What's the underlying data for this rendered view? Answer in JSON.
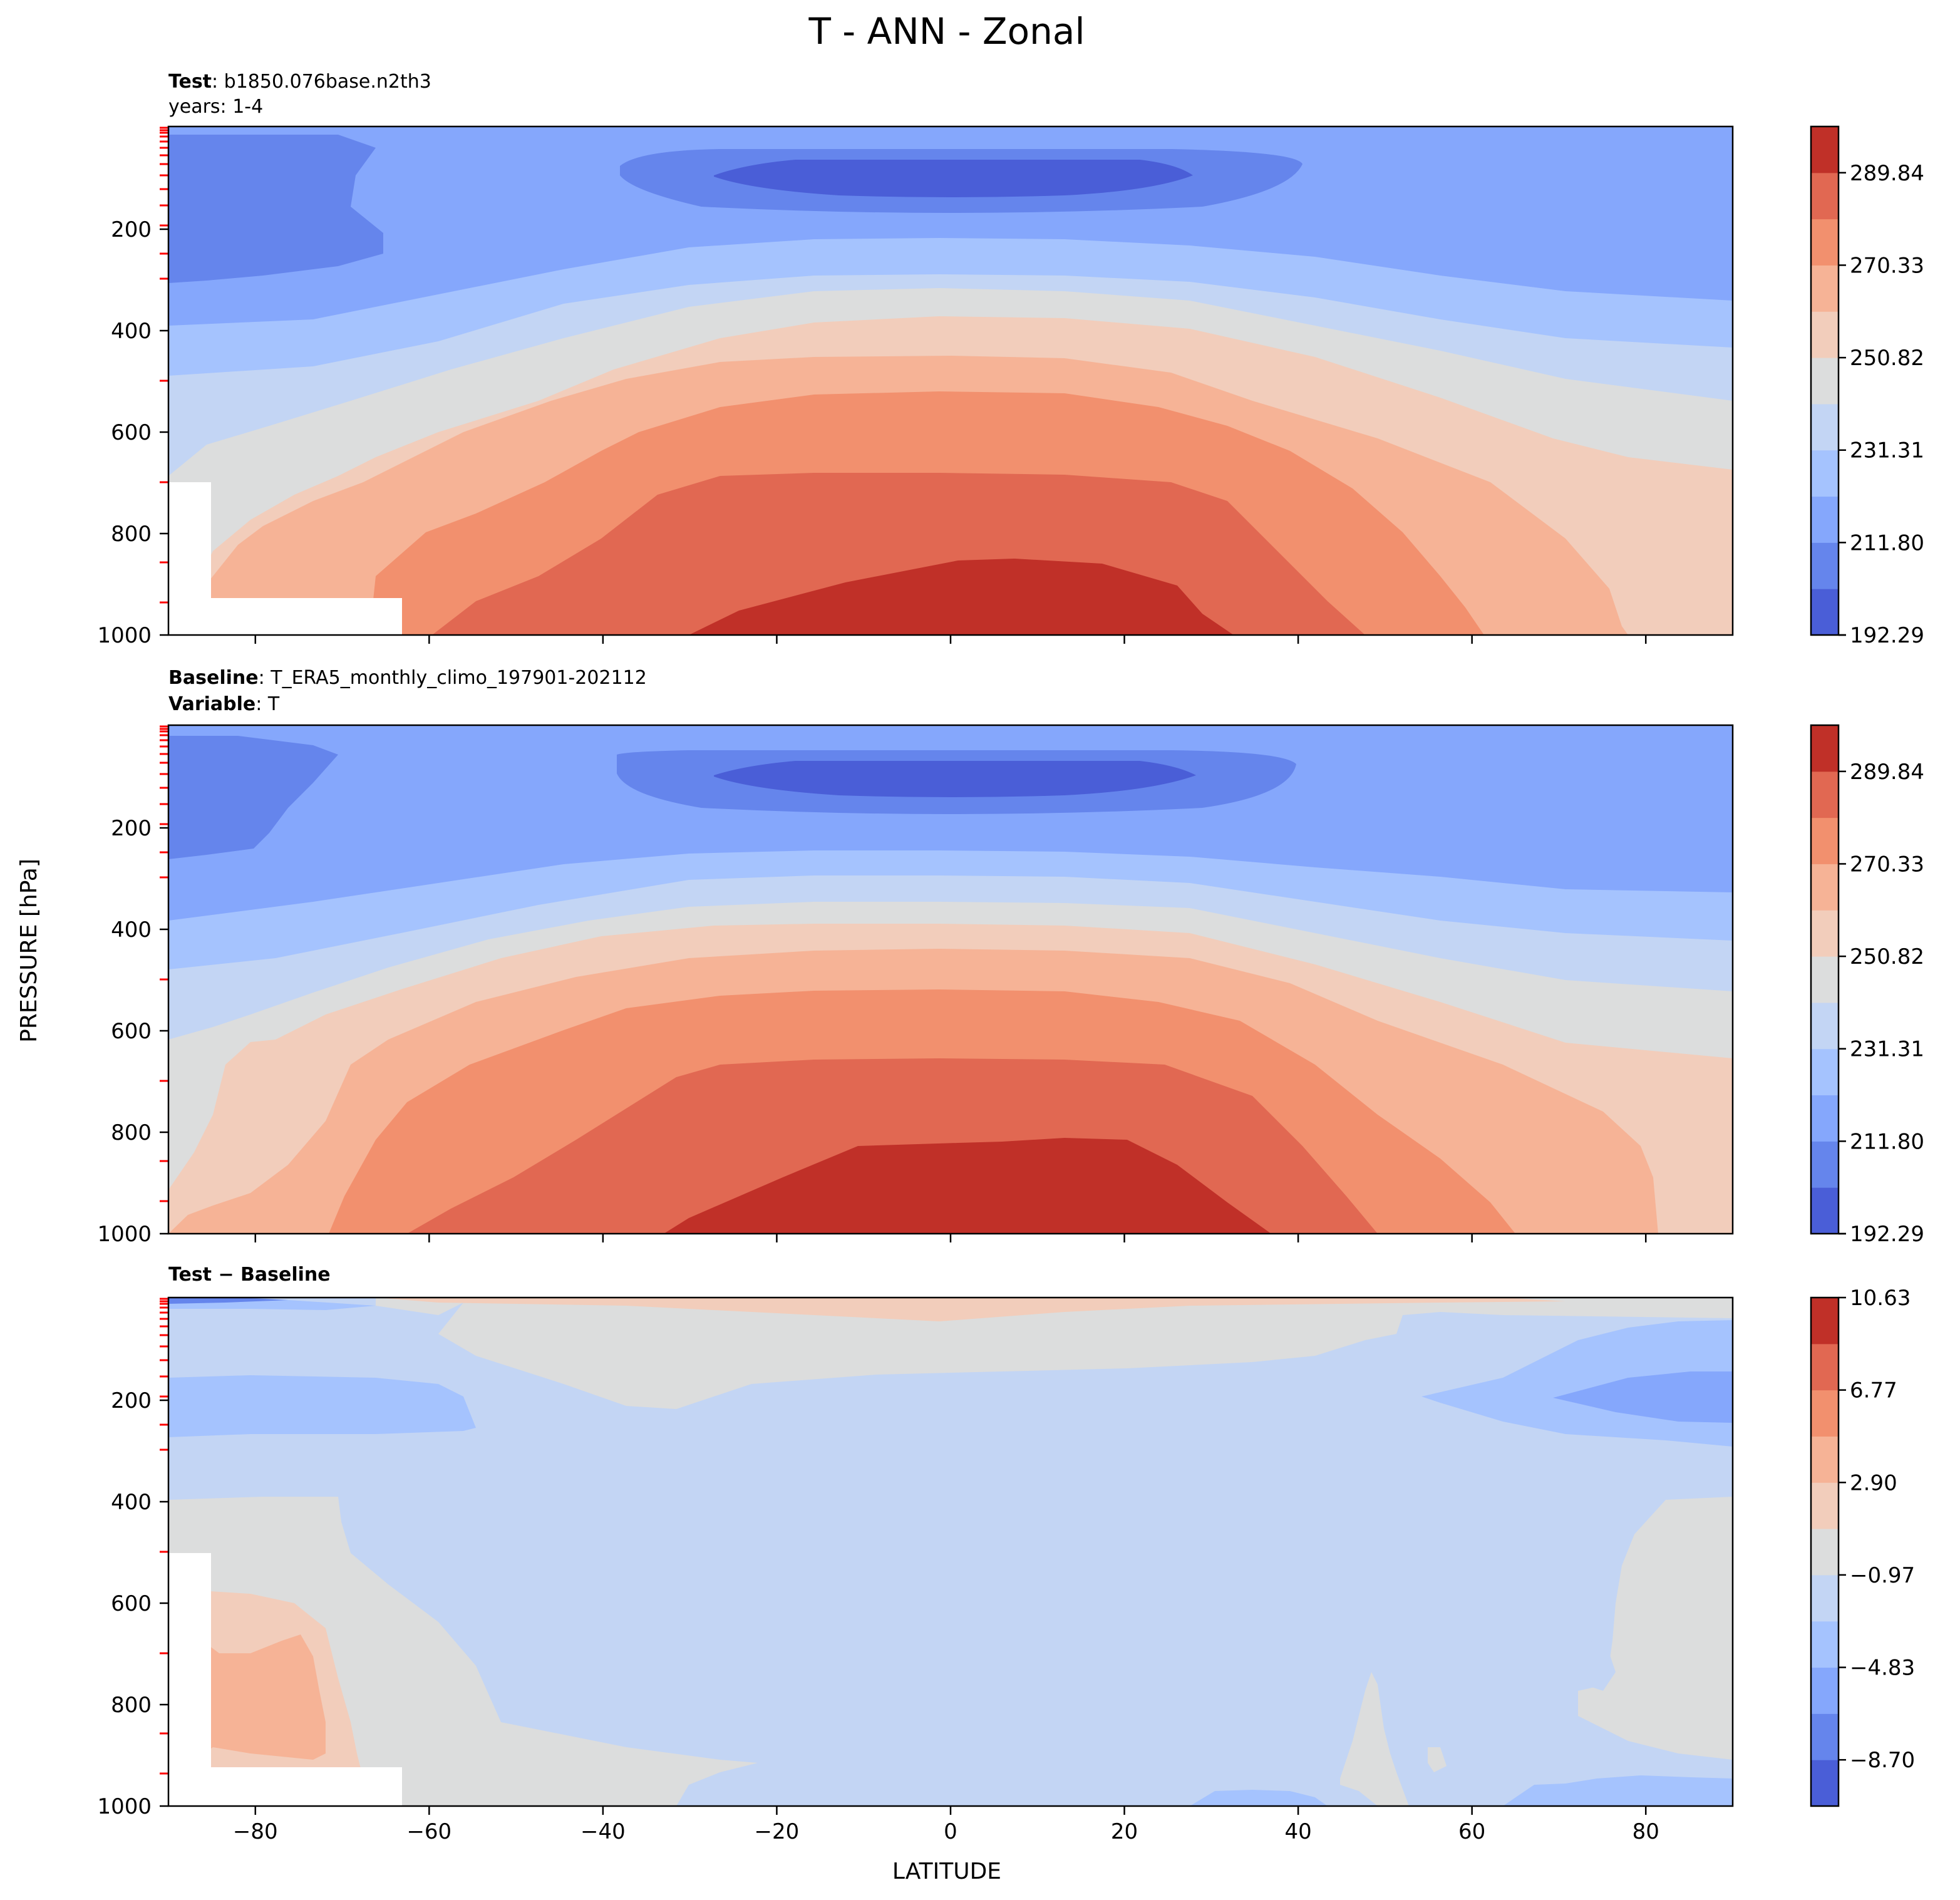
{
  "title": "T - ANN - Zonal",
  "xlabel": "LATITUDE",
  "ylabel": "PRESSURE [hPa]",
  "x_ticks": [
    -80,
    -60,
    -40,
    -20,
    0,
    20,
    40,
    60,
    80
  ],
  "y_ticks": [
    200,
    400,
    600,
    800,
    1000
  ],
  "panels": {
    "test": {
      "line1_bold": "Test",
      "line1_rest": ": b1850.076base.n2th3",
      "line2": "years: 1-4",
      "colorbar_ticks": [
        "289.84",
        "270.33",
        "250.82",
        "231.31",
        "211.80",
        "192.29"
      ]
    },
    "baseline": {
      "line1_bold": "Baseline",
      "line1_rest": ": T_ERA5_monthly_climo_197901-202112",
      "line2_bold": "Variable",
      "line2_rest": ": T",
      "colorbar_ticks": [
        "289.84",
        "270.33",
        "250.82",
        "231.31",
        "211.80",
        "192.29"
      ]
    },
    "diff": {
      "label": "Test − Baseline",
      "colorbar_ticks": [
        "10.63",
        "6.77",
        "2.90",
        "−0.97",
        "−4.83",
        "−8.70"
      ]
    }
  },
  "chart_data": [
    {
      "type": "heatmap",
      "title": "Test: b1850.076base.n2th3 (years: 1-4)",
      "xlabel": "LATITUDE",
      "ylabel": "PRESSURE [hPa]",
      "xlim": [
        -90,
        90
      ],
      "ylim": [
        1000,
        0
      ],
      "colormap": "coolwarm",
      "levels": [
        192.29,
        202.05,
        211.8,
        221.56,
        231.31,
        241.07,
        250.82,
        260.58,
        270.33,
        280.09,
        289.84,
        299.6
      ],
      "approx_field": {
        "equator_surface_K": 295,
        "pole_surface_K": 245,
        "tropopause_min_K": 195,
        "tropopause_min_hPa": 100
      }
    },
    {
      "type": "heatmap",
      "title": "Baseline: T_ERA5_monthly_climo_197901-202112 (Variable: T)",
      "xlabel": "LATITUDE",
      "ylabel": "PRESSURE [hPa]",
      "xlim": [
        -90,
        90
      ],
      "ylim": [
        1000,
        0
      ],
      "colormap": "coolwarm",
      "levels": [
        192.29,
        202.05,
        211.8,
        221.56,
        231.31,
        241.07,
        250.82,
        260.58,
        270.33,
        280.09,
        289.84,
        299.6
      ],
      "approx_field": {
        "equator_surface_K": 296,
        "pole_surface_K": 250,
        "tropopause_min_K": 195,
        "tropopause_min_hPa": 100
      }
    },
    {
      "type": "heatmap",
      "title": "Test − Baseline",
      "xlabel": "LATITUDE",
      "ylabel": "PRESSURE [hPa]",
      "xlim": [
        -90,
        90
      ],
      "ylim": [
        1000,
        0
      ],
      "colormap": "coolwarm",
      "levels": [
        -10.63,
        -8.7,
        -6.77,
        -4.83,
        -2.9,
        -0.97,
        0.97,
        2.9,
        4.83,
        6.77,
        8.7,
        10.63
      ],
      "approx_field": {
        "typical_difference_K": -2.5,
        "antarctic_lower_trop_K": 3.5,
        "northern_high_lat_200hPa_K": -6
      }
    }
  ],
  "colors": {
    "seq": [
      "#4a5ed7",
      "#6585ec",
      "#85a7fc",
      "#a5c3fe",
      "#c3d5f4",
      "#dcdddd",
      "#f2cdbb",
      "#f6b396",
      "#f2906e",
      "#e16852",
      "#c03028",
      "#b40426"
    ],
    "diff": [
      "#4a5ed7",
      "#6585ec",
      "#85a7fc",
      "#a5c3fe",
      "#c3d5f4",
      "#dcdddd",
      "#f2cdbb",
      "#f6b396",
      "#f2906e",
      "#e16852",
      "#c03028"
    ],
    "marker": "#ff0000"
  }
}
